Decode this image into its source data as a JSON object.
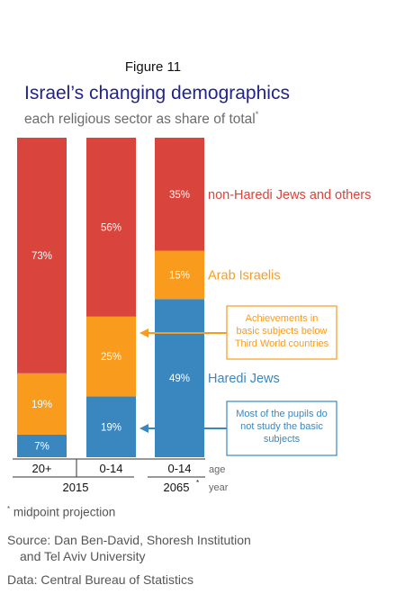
{
  "figure_label": "Figure 11",
  "footnote": "midpoint projection",
  "footnote_mark": "*",
  "source_line1": "Source: Dan Ben-David, Shoresh Institution",
  "source_line2": "and Tel Aviv University",
  "data_source": "Data: Central Bureau of Statistics",
  "colors": {
    "non_haredi": "#d9443d",
    "arab": "#f99b1c",
    "haredi": "#3a87c0",
    "title": "#23238c"
  },
  "chart_data": {
    "type": "bar",
    "stacked": true,
    "title": "Israel’s changing demographics",
    "subtitle": "each religious sector as share of total",
    "subtitle_mark": "*",
    "categories": [
      "20+",
      "0-14",
      "0-14"
    ],
    "year_groups": [
      {
        "label": "2015",
        "mark": ""
      },
      {
        "label": "2065",
        "mark": "*"
      }
    ],
    "row_labels": {
      "age": "age",
      "year": "year"
    },
    "series": [
      {
        "name": "Haredi Jews",
        "values": [
          7,
          19,
          49
        ],
        "labels": [
          "7%",
          "19%",
          "49%"
        ]
      },
      {
        "name": "Arab Israelis",
        "values": [
          19,
          25,
          15
        ],
        "labels": [
          "19%",
          "25%",
          "15%"
        ]
      },
      {
        "name": "non-Haredi Jews and others",
        "values": [
          73,
          56,
          35
        ],
        "labels": [
          "73%",
          "56%",
          "35%"
        ]
      }
    ],
    "ylim": [
      0,
      100
    ],
    "annotations": [
      {
        "text": [
          "Achievements in",
          "basic subjects below",
          "Third World countries"
        ],
        "target_series": "Arab Israelis",
        "color": "#f99b1c"
      },
      {
        "text": [
          "Most of the pupils do",
          "not study the basic",
          "subjects"
        ],
        "target_series": "Haredi Jews",
        "color": "#3a87c0"
      }
    ]
  }
}
